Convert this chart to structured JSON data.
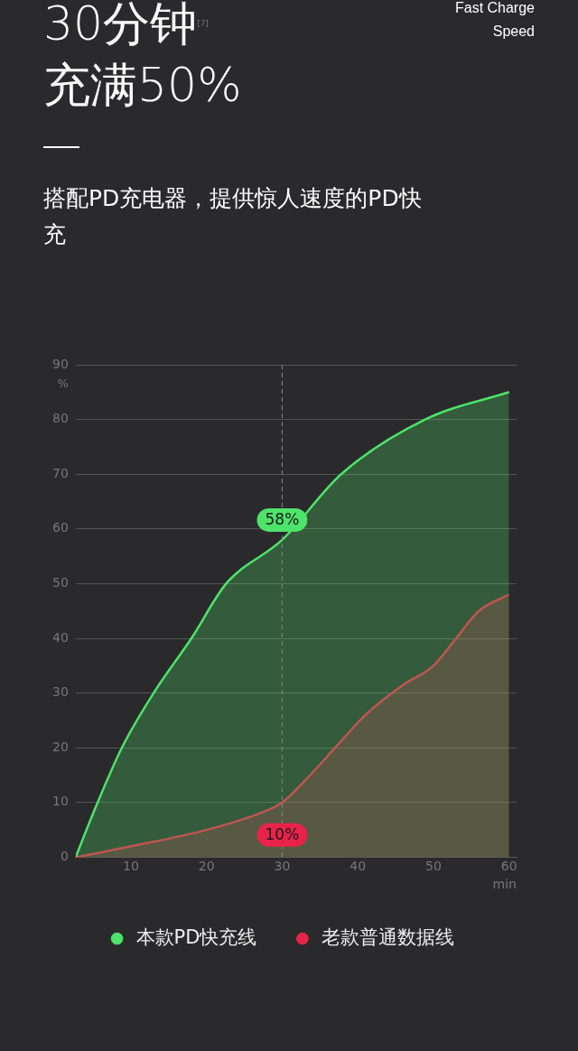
{
  "chart_data": {
    "type": "area",
    "title": "30分钟$^{[7]}$\n充满50%",
    "subtitle": "搭配PD充电器，提供惊人速度的PD快充",
    "xlabel": "min",
    "ylabel": "%",
    "annotations": [
      {
        "text": "58%",
        "x": 30,
        "y": 58
      },
      {
        "text": "10%",
        "x": 30,
        "y": 10
      },
      "Fast Charge\nSpeed"
    ],
    "series": [
      {
        "name": "本款PD快充线",
        "color": "#4ee36a",
        "x": [
          2.7,
          5,
          8.8,
          13,
          18,
          22.6,
          30,
          37.8,
          48.9,
          60
        ],
        "values": [
          0,
          8,
          20,
          30,
          40,
          50,
          58,
          70,
          80,
          85
        ]
      },
      {
        "name": "老款普通数据线",
        "color": "#e8234a",
        "x": [
          2.7,
          10,
          20,
          27,
          30,
          33,
          37,
          41,
          46,
          50,
          53,
          56,
          60
        ],
        "values": [
          0,
          2,
          5,
          8,
          10,
          14,
          20,
          26,
          31.5,
          35,
          40,
          45,
          48
        ]
      }
    ],
    "xlim": [
      2.7,
      61
    ],
    "xticks": [
      10,
      20,
      30,
      40,
      50,
      60
    ],
    "ylim": [
      0,
      90
    ],
    "yticks": [
      0,
      10,
      20,
      30,
      40,
      50,
      60,
      70,
      80,
      90
    ],
    "ref_lines": [
      {
        "axis": "x",
        "value": 30,
        "label": null,
        "line_style": "dashed"
      }
    ],
    "grid": "y",
    "legend": "bottom"
  }
}
